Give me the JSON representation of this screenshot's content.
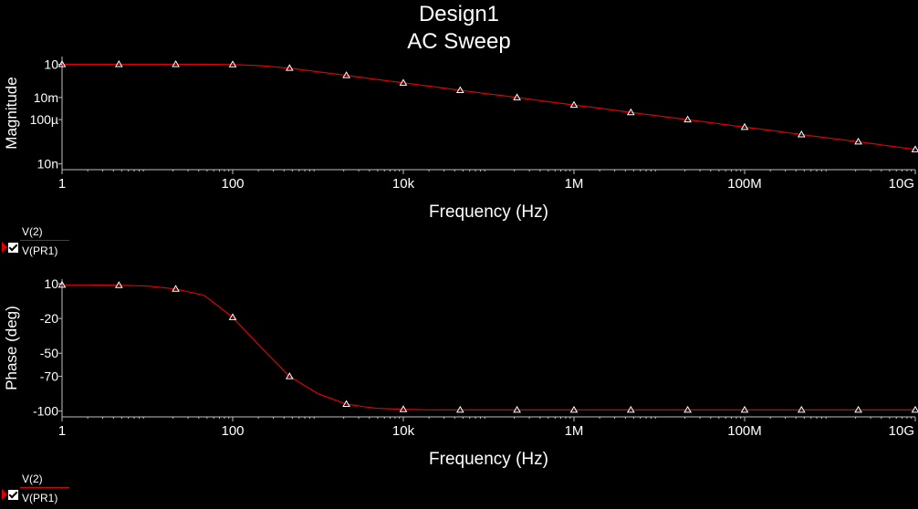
{
  "header": {
    "title": "Design1",
    "subtitle": "AC Sweep"
  },
  "colors": {
    "trace": "#e00000",
    "axis": "#c0c0c0",
    "text": "#ffffff",
    "marker": "#ffffff"
  },
  "chart_data": [
    {
      "type": "line",
      "name": "magnitude-plot",
      "xlabel": "Frequency (Hz)",
      "ylabel": "Magnitude",
      "x_scale": "log",
      "y_scale": "log",
      "xlim": [
        1,
        10000000000
      ],
      "ylim": [
        3e-09,
        50
      ],
      "x_ticks": [
        {
          "v": 1,
          "label": "1"
        },
        {
          "v": 100,
          "label": "100"
        },
        {
          "v": 10000,
          "label": "10k"
        },
        {
          "v": 1000000,
          "label": "1M"
        },
        {
          "v": 100000000,
          "label": "100M"
        },
        {
          "v": 10000000000,
          "label": "10G"
        }
      ],
      "y_ticks": [
        {
          "v": 10,
          "label": "10"
        },
        {
          "v": 0.01,
          "label": "10m"
        },
        {
          "v": 0.0001,
          "label": "100µ"
        },
        {
          "v": 1e-08,
          "label": "10n"
        }
      ],
      "grid": false,
      "series": [
        {
          "legend": [
            "V(2)",
            "V(PR1)"
          ],
          "x": [
            1,
            2.15,
            4.64,
            10,
            21.5,
            46.4,
            100,
            215,
            464,
            1000,
            2150,
            4640,
            10000,
            21500,
            46400,
            100000,
            215000,
            464000,
            1000000,
            2150000,
            4640000,
            10000000,
            21500000,
            46400000,
            100000000,
            215000000,
            464000000,
            1000000000,
            2150000000,
            4640000000,
            10000000000
          ],
          "y": [
            10,
            10,
            10,
            10,
            10,
            9.95,
            9.5,
            7.5,
            4.5,
            2.1,
            1,
            0.45,
            0.21,
            0.1,
            0.045,
            0.021,
            0.01,
            0.0045,
            0.0021,
            0.001,
            0.00045,
            0.00021,
            0.0001,
            4.5e-05,
            2.1e-05,
            1e-05,
            4.5e-06,
            2.1e-06,
            1e-06,
            4.5e-07,
            2e-07
          ]
        }
      ],
      "markers_x": [
        1,
        4.64,
        21.5,
        100,
        464,
        2150,
        10000,
        46400,
        215000,
        1000000,
        4640000,
        21500000,
        100000000,
        464000000,
        2150000000,
        10000000000
      ]
    },
    {
      "type": "line",
      "name": "phase-plot",
      "xlabel": "Frequency (Hz)",
      "ylabel": "Phase (deg)",
      "x_scale": "log",
      "y_scale": "linear",
      "xlim": [
        1,
        10000000000
      ],
      "ylim": [
        -105,
        14
      ],
      "x_ticks": [
        {
          "v": 1,
          "label": "1"
        },
        {
          "v": 100,
          "label": "100"
        },
        {
          "v": 10000,
          "label": "10k"
        },
        {
          "v": 1000000,
          "label": "1M"
        },
        {
          "v": 100000000,
          "label": "100M"
        },
        {
          "v": 10000000000,
          "label": "10G"
        }
      ],
      "y_ticks": [
        {
          "v": 10,
          "label": "10"
        },
        {
          "v": -20,
          "label": "-20"
        },
        {
          "v": -50,
          "label": "-50"
        },
        {
          "v": -70,
          "label": "-70"
        },
        {
          "v": -100,
          "label": "-100"
        }
      ],
      "grid": false,
      "series": [
        {
          "legend": [
            "V(2)",
            "V(PR1)"
          ],
          "x": [
            1,
            2.15,
            4.64,
            10,
            21.5,
            46.4,
            100,
            215,
            464,
            1000,
            2150,
            4640,
            10000,
            21500,
            46400,
            100000,
            1000000,
            10000000,
            100000000,
            1000000000,
            10000000000
          ],
          "y": [
            9,
            9,
            8.7,
            8,
            5.5,
            0,
            -19,
            -45,
            -70,
            -85,
            -94,
            -97.5,
            -98.5,
            -99,
            -99,
            -99,
            -99,
            -99,
            -99,
            -99,
            -99
          ]
        }
      ],
      "markers_x": [
        1,
        4.64,
        21.5,
        100,
        464,
        2150,
        10000,
        46400,
        215000,
        1000000,
        4640000,
        21500000,
        100000000,
        464000000,
        2150000000,
        10000000000
      ]
    }
  ],
  "legends": [
    {
      "line1": "V(2)",
      "line2": "V(PR1)"
    },
    {
      "line1": "V(2)",
      "line2": "V(PR1)"
    }
  ]
}
